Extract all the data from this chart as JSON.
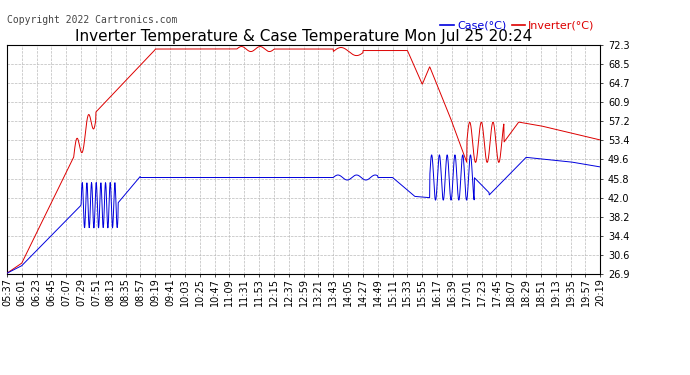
{
  "title": "Inverter Temperature & Case Temperature Mon Jul 25 20:24",
  "copyright": "Copyright 2022 Cartronics.com",
  "legend_case": "Case(°C)",
  "legend_inverter": "Inverter(°C)",
  "yticks": [
    26.9,
    30.6,
    34.4,
    38.2,
    42.0,
    45.8,
    49.6,
    53.4,
    57.2,
    60.9,
    64.7,
    68.5,
    72.3
  ],
  "ymin": 26.9,
  "ymax": 72.3,
  "xtick_labels": [
    "05:37",
    "06:01",
    "06:23",
    "06:45",
    "07:07",
    "07:29",
    "07:51",
    "08:13",
    "08:35",
    "08:57",
    "09:19",
    "09:41",
    "10:03",
    "10:25",
    "10:47",
    "11:09",
    "11:31",
    "11:53",
    "12:15",
    "12:37",
    "12:59",
    "13:21",
    "13:43",
    "14:05",
    "14:27",
    "14:49",
    "15:11",
    "15:33",
    "15:55",
    "16:17",
    "16:39",
    "17:01",
    "17:23",
    "17:45",
    "18:07",
    "18:29",
    "18:51",
    "19:13",
    "19:35",
    "19:57",
    "20:19"
  ],
  "bg_color": "#ffffff",
  "grid_color": "#bbbbbb",
  "title_color": "#000000",
  "title_fontsize": 11,
  "copyright_color": "#444444",
  "copyright_fontsize": 7,
  "case_color": "#0000dd",
  "inverter_color": "#dd0000",
  "tick_fontsize": 7,
  "legend_fontsize": 8
}
